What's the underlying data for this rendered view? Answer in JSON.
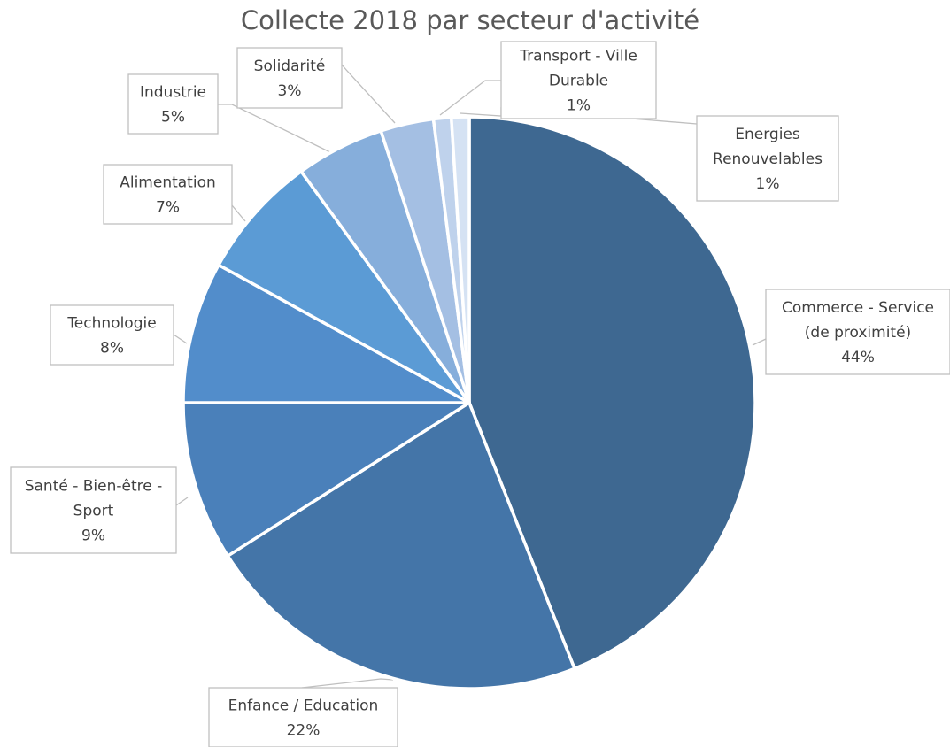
{
  "chart_data": {
    "type": "pie",
    "title": "Collecte 2018 par secteur d'activité",
    "legend": "none",
    "slices": [
      {
        "name": "Commerce - Service (de proximité)",
        "label_lines": [
          "Commerce - Service",
          "(de proximité)"
        ],
        "value": 44,
        "percent_label": "44%",
        "color": "#3E6891"
      },
      {
        "name": "Enfance / Education",
        "label_lines": [
          "Enfance / Education"
        ],
        "value": 22,
        "percent_label": "22%",
        "color": "#4475A8"
      },
      {
        "name": "Santé - Bien-être - Sport",
        "label_lines": [
          "Santé - Bien-être -",
          "Sport"
        ],
        "value": 9,
        "percent_label": "9%",
        "color": "#4A80BA"
      },
      {
        "name": "Technologie",
        "label_lines": [
          "Technologie"
        ],
        "value": 8,
        "percent_label": "8%",
        "color": "#528DCB"
      },
      {
        "name": "Alimentation",
        "label_lines": [
          "Alimentation"
        ],
        "value": 7,
        "percent_label": "7%",
        "color": "#5B9BD5"
      },
      {
        "name": "Industrie",
        "label_lines": [
          "Industrie"
        ],
        "value": 5,
        "percent_label": "5%",
        "color": "#86AEDB"
      },
      {
        "name": "Solidarité",
        "label_lines": [
          "Solidarité"
        ],
        "value": 3,
        "percent_label": "3%",
        "color": "#A4BFE3"
      },
      {
        "name": "Transport - Ville Durable",
        "label_lines": [
          "Transport - Ville",
          "Durable"
        ],
        "value": 1,
        "percent_label": "1%",
        "color": "#BFD2EC"
      },
      {
        "name": "Energies Renouvelables",
        "label_lines": [
          "Energies",
          "Renouvelables"
        ],
        "value": 1,
        "percent_label": "1%",
        "color": "#D5E2F3"
      }
    ]
  }
}
